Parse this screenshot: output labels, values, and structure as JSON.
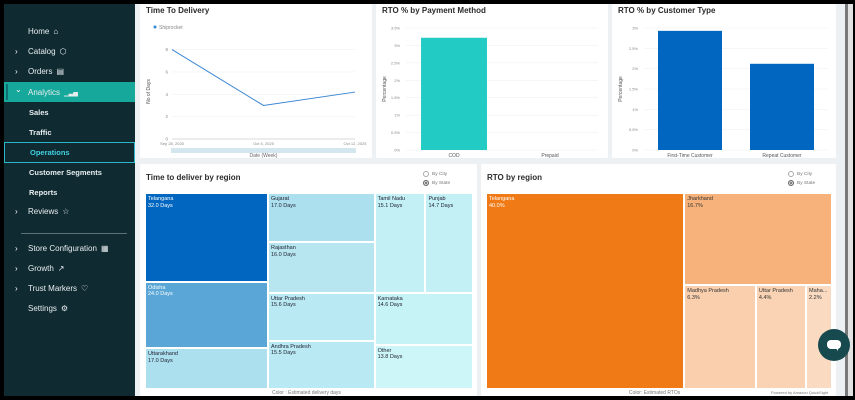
{
  "sidebar": {
    "items": [
      {
        "label": "Home",
        "icon": "home-icon",
        "glyph": "⌂",
        "chevron": false
      },
      {
        "label": "Catalog",
        "icon": "cube-icon",
        "glyph": "⬡",
        "chevron": true
      },
      {
        "label": "Orders",
        "icon": "clipboard-icon",
        "glyph": "▤",
        "chevron": true
      },
      {
        "label": "Analytics",
        "icon": "bar-chart-icon",
        "glyph": "▁▃▅",
        "chevron": true,
        "expanded": true
      },
      {
        "label": "Reviews",
        "icon": "star-icon",
        "glyph": "☆",
        "chevron": true
      },
      {
        "label": "Store Configuration",
        "icon": "store-icon",
        "glyph": "▦",
        "chevron": true
      },
      {
        "label": "Growth",
        "icon": "trend-up-icon",
        "glyph": "↗",
        "chevron": true
      },
      {
        "label": "Trust Markers",
        "icon": "shield-heart-icon",
        "glyph": "♡",
        "chevron": true
      },
      {
        "label": "Settings",
        "icon": "gear-icon",
        "glyph": "⚙",
        "chevron": false
      }
    ],
    "analytics_sub": [
      {
        "label": "Sales"
      },
      {
        "label": "Traffic"
      },
      {
        "label": "Operations",
        "selected": true
      },
      {
        "label": "Customer Segments"
      },
      {
        "label": "Reports"
      }
    ],
    "chevron_right": "›",
    "chevron_down": "⌄"
  },
  "cards": {
    "time_to_delivery": {
      "title": "Time To Delivery"
    },
    "rto_payment": {
      "title": "RTO % by Payment Method"
    },
    "rto_customer": {
      "title": "RTO % by Customer Type"
    },
    "deliver_region": {
      "title": "Time to deliver by region",
      "radio_city": "By City",
      "radio_state": "By State",
      "selected": "By State",
      "color_note": "Color : Estimated delivery days"
    },
    "rto_region": {
      "title": "RTO by region",
      "radio_city": "By City",
      "radio_state": "By State",
      "selected": "By State",
      "color_note": "Color: Estimated RTOs"
    }
  },
  "chart_data": [
    {
      "type": "line",
      "title": "Time To Delivery",
      "xlabel": "Date (Week)",
      "ylabel": "No of Days",
      "legend": [
        "Shiprocket"
      ],
      "legend_position": "top-left",
      "x": [
        "Sep 28, 2025",
        "Oct 5, 2025",
        "Oct 12, 2025"
      ],
      "series": [
        {
          "name": "Shiprocket",
          "values": [
            8,
            3,
            4.2
          ],
          "color": "#3a86d4"
        }
      ],
      "yticks": [
        "0",
        "2",
        "4",
        "6",
        "8"
      ],
      "ylim": [
        0,
        8.5
      ],
      "grid": true
    },
    {
      "type": "bar",
      "title": "RTO % by Payment Method",
      "xlabel": "",
      "ylabel": "Percentage",
      "categories": [
        "COD",
        "Prepaid"
      ],
      "values": [
        3.22,
        0
      ],
      "color": "#22cbc4",
      "yticks": [
        "0%",
        "0.5%",
        "1%",
        "1.5%",
        "2%",
        "2.5%",
        "3%",
        "3.5%"
      ],
      "ylim": [
        0,
        3.5
      ],
      "grid": true
    },
    {
      "type": "bar",
      "title": "RTO % by Customer Type",
      "xlabel": "",
      "ylabel": "Percentage",
      "categories": [
        "First-Time Customer",
        "Repeat Customer"
      ],
      "values": [
        2.93,
        2.12
      ],
      "color": "#0066bf",
      "yticks": [
        "0%",
        "0.5%",
        "1%",
        "1.5%",
        "2%",
        "2.5%",
        "3%"
      ],
      "ylim": [
        0,
        3
      ],
      "grid": true
    },
    {
      "type": "heatmap",
      "subtype": "treemap",
      "title": "Time to deliver by region",
      "unit": "Days",
      "items": [
        {
          "name": "Telangana",
          "value": 32.0,
          "label": "32.0 Days"
        },
        {
          "name": "Odisha",
          "value": 24.0,
          "label": "24.0 Days"
        },
        {
          "name": "Uttarakhand",
          "value": 17.0,
          "label": "17.0 Days"
        },
        {
          "name": "Gujarat",
          "value": 17.0,
          "label": "17.0 Days"
        },
        {
          "name": "Rajasthan",
          "value": 16.0,
          "label": "16.0 Days"
        },
        {
          "name": "Uttar Pradesh",
          "value": 15.6,
          "label": "15.6 Days"
        },
        {
          "name": "Andhra Pradesh",
          "value": 15.5,
          "label": "15.5 Days"
        },
        {
          "name": "Tamil Nadu",
          "value": 15.1,
          "label": "15.1 Days"
        },
        {
          "name": "Punjab",
          "value": 14.7,
          "label": "14.7 Days"
        },
        {
          "name": "Karnataka",
          "value": 14.6,
          "label": "14.6 Days"
        },
        {
          "name": "Other",
          "value": 13.8,
          "label": "13.8 Days"
        }
      ],
      "color_legend": "Color : Estimated delivery days"
    },
    {
      "type": "heatmap",
      "subtype": "treemap",
      "title": "RTO by region",
      "unit": "%",
      "items": [
        {
          "name": "Telangana",
          "value": 40.0,
          "label": "40.0%"
        },
        {
          "name": "Jharkhand",
          "value": 16.7,
          "label": "16.7%"
        },
        {
          "name": "Madhya Pradesh",
          "value": 6.3,
          "label": "6.3%"
        },
        {
          "name": "Uttar Pradesh",
          "value": 4.4,
          "label": "4.4%"
        },
        {
          "name": "Maha...",
          "value": 2.2,
          "label": "2.2%"
        }
      ],
      "color_legend": "Color: Estimated RTOs"
    }
  ],
  "footer": {
    "powered_by": "Powered by Amazon QuickSight"
  }
}
